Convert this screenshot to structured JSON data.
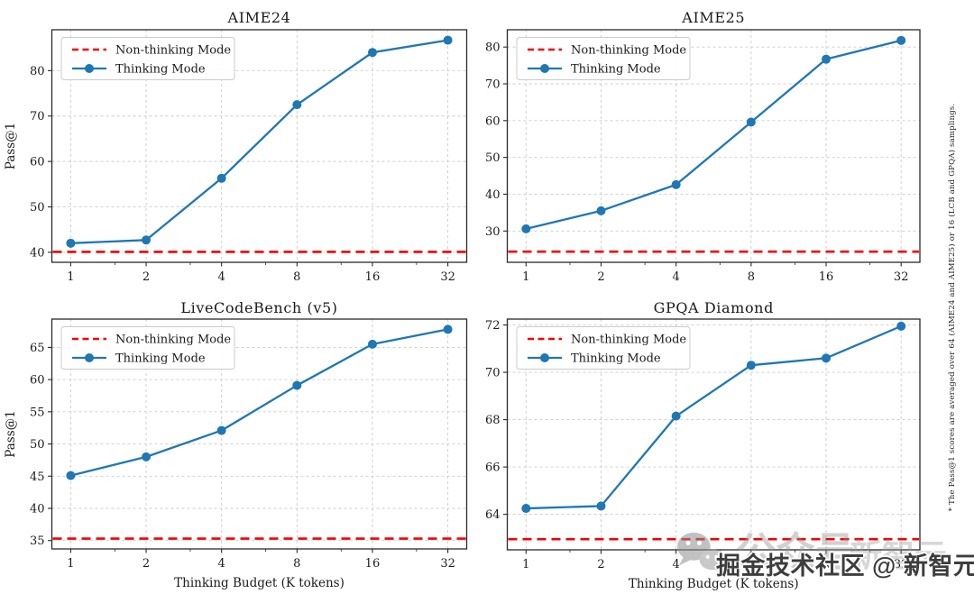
{
  "figure": {
    "background": "#ffffff",
    "shared_ylabel": "Pass@1",
    "shared_xlabel": "Thinking Budget (K tokens)"
  },
  "legend": {
    "non_thinking_label": "Non-thinking Mode",
    "thinking_label": "Thinking Mode",
    "position": "upper left"
  },
  "colors": {
    "thinking_line": "#1f77b4",
    "non_thinking_line": "#f50000",
    "grid": "#cccccc",
    "spine": "#2a2a2a",
    "text": "#1a1a1a",
    "legend_border": "#cccccc",
    "legend_fill": "#ffffff"
  },
  "footnote": "* The Pass@1 scores are averaged over 64 (AIME24 and AIME25) or 16 (LCB and GPQA) samplings.",
  "watermark": {
    "icon": "wechat-icon",
    "faint_text": "公众号",
    "faint_text_2": "新智元",
    "main_text": "掘金技术社区 @ 新智元"
  },
  "chart_data": [
    {
      "type": "line",
      "title": "AIME24",
      "x_scale": "log2",
      "x": [
        1,
        2,
        4,
        8,
        16,
        32
      ],
      "x_tick_labels": [
        "1",
        "2",
        "4",
        "8",
        "16",
        "32"
      ],
      "xlabel": "",
      "ylabel": "Pass@1",
      "yticks": [
        40,
        50,
        60,
        70,
        80
      ],
      "ylim": [
        37.8,
        89.0
      ],
      "grid": true,
      "legend_position": "upper left",
      "series": [
        {
          "name": "Non-thinking Mode",
          "style": "dashed-baseline",
          "color": "#f50000",
          "value": 40.1
        },
        {
          "name": "Thinking Mode",
          "style": "line-markers",
          "color": "#1f77b4",
          "values": [
            42.0,
            42.7,
            56.3,
            72.5,
            84.0,
            86.7
          ]
        }
      ]
    },
    {
      "type": "line",
      "title": "AIME25",
      "x_scale": "log2",
      "x": [
        1,
        2,
        4,
        8,
        16,
        32
      ],
      "x_tick_labels": [
        "1",
        "2",
        "4",
        "8",
        "16",
        "32"
      ],
      "xlabel": "",
      "ylabel": "",
      "yticks": [
        30,
        40,
        50,
        60,
        70,
        80
      ],
      "ylim": [
        21.5,
        84.7
      ],
      "grid": true,
      "legend_position": "upper left",
      "series": [
        {
          "name": "Non-thinking Mode",
          "style": "dashed-baseline",
          "color": "#f50000",
          "value": 24.4
        },
        {
          "name": "Thinking Mode",
          "style": "line-markers",
          "color": "#1f77b4",
          "values": [
            30.6,
            35.5,
            42.6,
            59.6,
            76.7,
            81.8
          ]
        }
      ]
    },
    {
      "type": "line",
      "title": "LiveCodeBench (v5)",
      "x_scale": "log2",
      "x": [
        1,
        2,
        4,
        8,
        16,
        32
      ],
      "x_tick_labels": [
        "1",
        "2",
        "4",
        "8",
        "16",
        "32"
      ],
      "xlabel": "Thinking Budget (K tokens)",
      "ylabel": "Pass@1",
      "yticks": [
        35,
        40,
        45,
        50,
        55,
        60,
        65
      ],
      "ylim": [
        33.7,
        69.4
      ],
      "grid": true,
      "legend_position": "upper left",
      "series": [
        {
          "name": "Non-thinking Mode",
          "style": "dashed-baseline",
          "color": "#f50000",
          "value": 35.3
        },
        {
          "name": "Thinking Mode",
          "style": "line-markers",
          "color": "#1f77b4",
          "values": [
            45.1,
            48.0,
            52.1,
            59.1,
            65.5,
            67.8
          ]
        }
      ]
    },
    {
      "type": "line",
      "title": "GPQA Diamond",
      "x_scale": "log2",
      "x": [
        1,
        2,
        4,
        8,
        16,
        32
      ],
      "x_tick_labels": [
        "1",
        "2",
        "4",
        "8",
        "16",
        "32"
      ],
      "xlabel": "Thinking Budget (K tokens)",
      "ylabel": "",
      "yticks": [
        64,
        66,
        68,
        70,
        72
      ],
      "ylim": [
        62.5,
        72.25
      ],
      "grid": true,
      "legend_position": "upper left",
      "series": [
        {
          "name": "Non-thinking Mode",
          "style": "dashed-baseline",
          "color": "#f50000",
          "value": 62.95
        },
        {
          "name": "Thinking Mode",
          "style": "line-markers",
          "color": "#1f77b4",
          "values": [
            64.25,
            64.35,
            68.15,
            70.3,
            70.6,
            71.95
          ]
        }
      ]
    }
  ]
}
